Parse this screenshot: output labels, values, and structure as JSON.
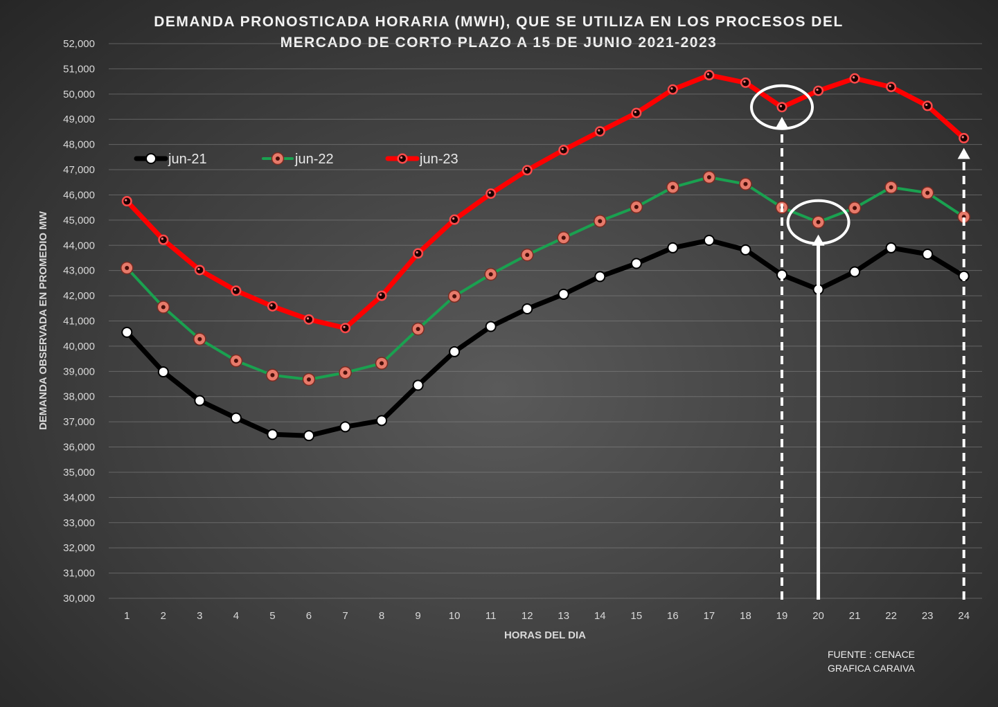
{
  "chart_data": {
    "type": "line",
    "title_lines": [
      "DEMANDA PRONOSTICADA HORARIA (MWH), QUE SE UTILIZA EN LOS PROCESOS DEL",
      "MERCADO DE CORTO PLAZO A 15 DE JUNIO 2021-2023"
    ],
    "xlabel": "HORAS DEL DIA",
    "ylabel": "DEMANDA OBSERVADA EN PROMEDIO MW",
    "x": [
      1,
      2,
      3,
      4,
      5,
      6,
      7,
      8,
      9,
      10,
      11,
      12,
      13,
      14,
      15,
      16,
      17,
      18,
      19,
      20,
      21,
      22,
      23,
      24
    ],
    "ylim": [
      30000,
      52000
    ],
    "ystep": 1000,
    "y_tick_labels": [
      "30,000",
      "31,000",
      "32,000",
      "33,000",
      "34,000",
      "35,000",
      "36,000",
      "37,000",
      "38,000",
      "39,000",
      "40,000",
      "41,000",
      "42,000",
      "43,000",
      "44,000",
      "45,000",
      "46,000",
      "47,000",
      "48,000",
      "49,000",
      "50,000",
      "51,000",
      "52,000"
    ],
    "grid": true,
    "legend_position": "top-left",
    "series": [
      {
        "name": "jun-21",
        "line_color": "#000000",
        "marker_color": "#ffffff",
        "values": [
          40550,
          38980,
          37840,
          37150,
          36500,
          36450,
          36800,
          37050,
          38450,
          39780,
          40780,
          41480,
          42060,
          42760,
          43280,
          43900,
          44200,
          43820,
          42830,
          42250,
          42950,
          43900,
          43650,
          42780
        ]
      },
      {
        "name": "jun-22",
        "line_color": "#1aa150",
        "marker_color": "#e77a6a",
        "values": [
          43100,
          41550,
          40280,
          39420,
          38850,
          38680,
          38950,
          39320,
          40680,
          41980,
          42850,
          43620,
          44300,
          44960,
          45520,
          46300,
          46700,
          46430,
          45500,
          44920,
          45480,
          46300,
          46080,
          45130
        ]
      },
      {
        "name": "jun-23",
        "line_color": "#ff0000",
        "marker_color": "#1a0000",
        "values": [
          45750,
          44220,
          43020,
          42200,
          41580,
          41060,
          40720,
          42000,
          43680,
          45020,
          46050,
          46980,
          47780,
          48520,
          49250,
          50180,
          50750,
          50450,
          49480,
          50130,
          50620,
          50280,
          49530,
          48250
        ]
      }
    ],
    "annotations": [
      {
        "type": "circle",
        "series": "jun-23",
        "x": 19
      },
      {
        "type": "circle",
        "series": "jun-22",
        "x": 20
      },
      {
        "type": "arrow",
        "style": "dashed",
        "x": 19,
        "to_series": "jun-23"
      },
      {
        "type": "arrow",
        "style": "solid",
        "x": 20,
        "to_series": "jun-22"
      },
      {
        "type": "arrow",
        "style": "dashed",
        "x": 24,
        "to_series": "jun-23"
      }
    ],
    "source_lines": [
      "FUENTE : CENACE",
      "GRAFICA CARAIVA"
    ]
  }
}
